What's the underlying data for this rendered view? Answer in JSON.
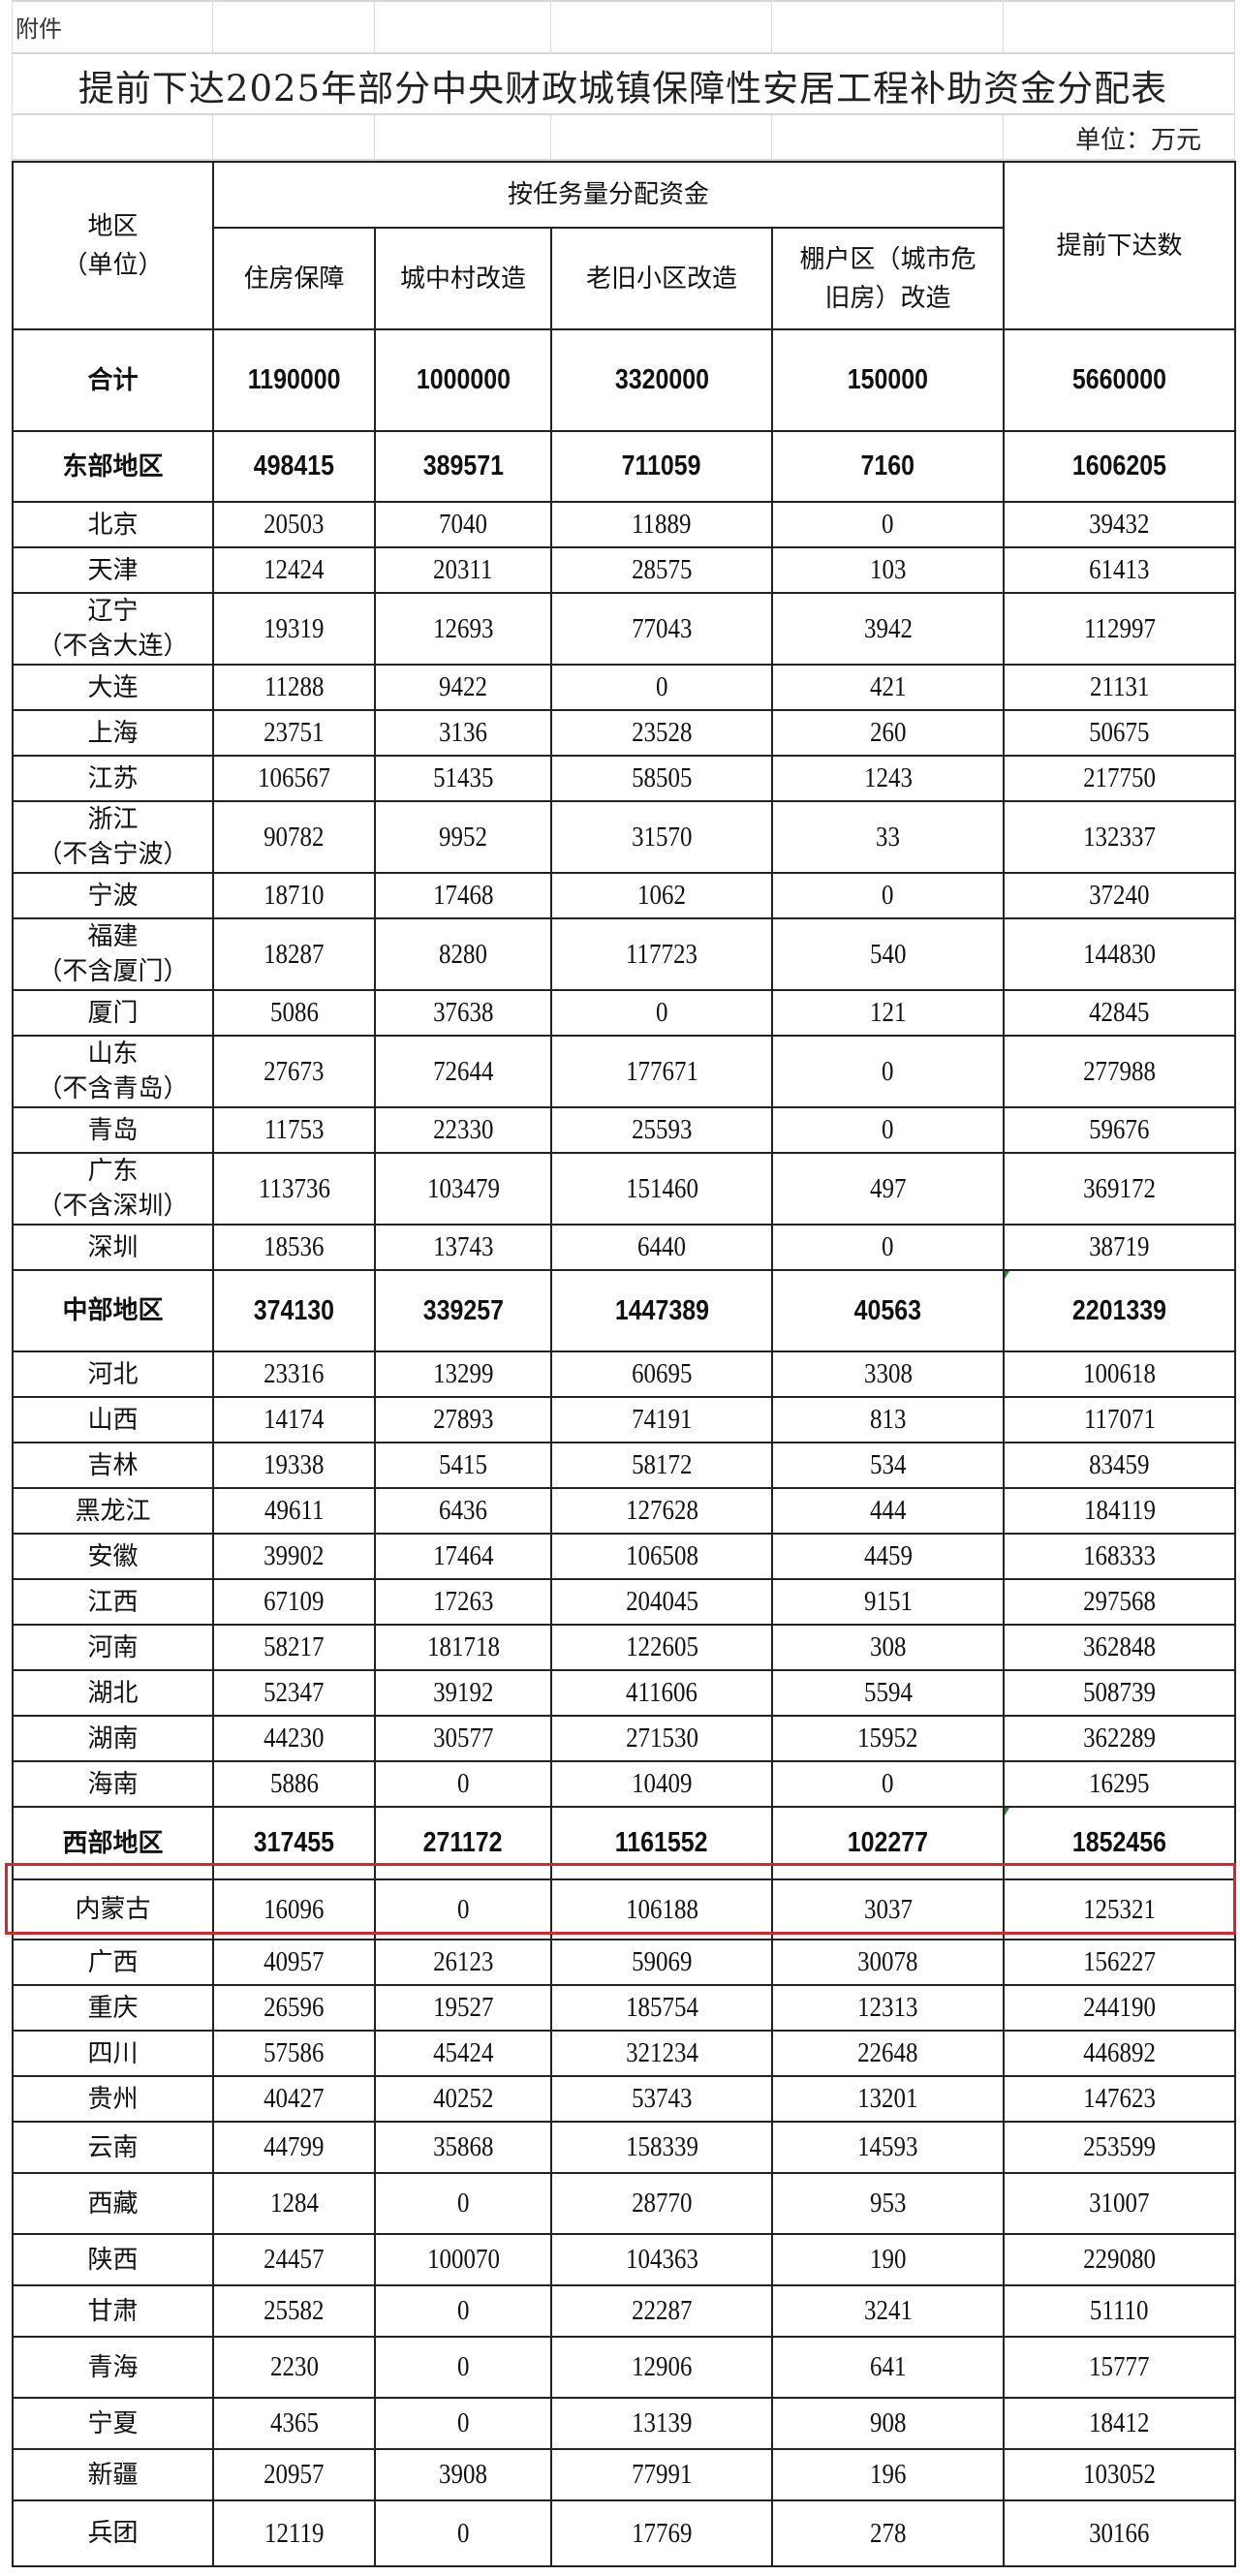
{
  "sheet": {
    "attachment_label": "附件",
    "title": "提前下达2025年部分中央财政城镇保障性安居工程补助资金分配表",
    "unit": "单位：万元"
  },
  "header": {
    "region": "地区\n（单位）",
    "group": "按任务量分配资金",
    "columns": [
      "住房保障",
      "城中村改造",
      "老旧小区改造",
      "棚户区（城市危旧房）改造"
    ],
    "total": "提前下达数"
  },
  "rows": [
    {
      "name": "合计",
      "values": [
        "1190000",
        "1000000",
        "3320000",
        "150000",
        "5660000"
      ],
      "subtotal": true
    },
    {
      "name": "东部地区",
      "values": [
        "498415",
        "389571",
        "711059",
        "7160",
        "1606205"
      ],
      "subtotal": true
    },
    {
      "name": "北京",
      "values": [
        "20503",
        "7040",
        "11889",
        "0",
        "39432"
      ]
    },
    {
      "name": "天津",
      "values": [
        "12424",
        "20311",
        "28575",
        "103",
        "61413"
      ]
    },
    {
      "name": "辽宁\n（不含大连）",
      "values": [
        "19319",
        "12693",
        "77043",
        "3942",
        "112997"
      ]
    },
    {
      "name": "大连",
      "values": [
        "11288",
        "9422",
        "0",
        "421",
        "21131"
      ]
    },
    {
      "name": "上海",
      "values": [
        "23751",
        "3136",
        "23528",
        "260",
        "50675"
      ]
    },
    {
      "name": "江苏",
      "values": [
        "106567",
        "51435",
        "58505",
        "1243",
        "217750"
      ]
    },
    {
      "name": "浙江\n（不含宁波）",
      "values": [
        "90782",
        "9952",
        "31570",
        "33",
        "132337"
      ]
    },
    {
      "name": "宁波",
      "values": [
        "18710",
        "17468",
        "1062",
        "0",
        "37240"
      ]
    },
    {
      "name": "福建\n（不含厦门）",
      "values": [
        "18287",
        "8280",
        "117723",
        "540",
        "144830"
      ]
    },
    {
      "name": "厦门",
      "values": [
        "5086",
        "37638",
        "0",
        "121",
        "42845"
      ]
    },
    {
      "name": "山东\n（不含青岛）",
      "values": [
        "27673",
        "72644",
        "177671",
        "0",
        "277988"
      ]
    },
    {
      "name": "青岛",
      "values": [
        "11753",
        "22330",
        "25593",
        "0",
        "59676"
      ]
    },
    {
      "name": "广东\n（不含深圳）",
      "values": [
        "113736",
        "103479",
        "151460",
        "497",
        "369172"
      ]
    },
    {
      "name": "深圳",
      "values": [
        "18536",
        "13743",
        "6440",
        "0",
        "38719"
      ]
    },
    {
      "name": "中部地区",
      "values": [
        "374130",
        "339257",
        "1447389",
        "40563",
        "2201339"
      ],
      "subtotal": true
    },
    {
      "name": "河北",
      "values": [
        "23316",
        "13299",
        "60695",
        "3308",
        "100618"
      ]
    },
    {
      "name": "山西",
      "values": [
        "14174",
        "27893",
        "74191",
        "813",
        "117071"
      ]
    },
    {
      "name": "吉林",
      "values": [
        "19338",
        "5415",
        "58172",
        "534",
        "83459"
      ]
    },
    {
      "name": "黑龙江",
      "values": [
        "49611",
        "6436",
        "127628",
        "444",
        "184119"
      ]
    },
    {
      "name": "安徽",
      "values": [
        "39902",
        "17464",
        "106508",
        "4459",
        "168333"
      ]
    },
    {
      "name": "江西",
      "values": [
        "67109",
        "17263",
        "204045",
        "9151",
        "297568"
      ]
    },
    {
      "name": "河南",
      "values": [
        "58217",
        "181718",
        "122605",
        "308",
        "362848"
      ]
    },
    {
      "name": "湖北",
      "values": [
        "52347",
        "39192",
        "411606",
        "5594",
        "508739"
      ]
    },
    {
      "name": "湖南",
      "values": [
        "44230",
        "30577",
        "271530",
        "15952",
        "362289"
      ]
    },
    {
      "name": "海南",
      "values": [
        "5886",
        "0",
        "10409",
        "0",
        "16295"
      ]
    },
    {
      "name": "西部地区",
      "values": [
        "317455",
        "271172",
        "1161552",
        "102277",
        "1852456"
      ],
      "subtotal": true
    },
    {
      "name": "内蒙古",
      "values": [
        "16096",
        "0",
        "106188",
        "3037",
        "125321"
      ],
      "highlighted": true
    },
    {
      "name": "广西",
      "values": [
        "40957",
        "26123",
        "59069",
        "30078",
        "156227"
      ]
    },
    {
      "name": "重庆",
      "values": [
        "26596",
        "19527",
        "185754",
        "12313",
        "244190"
      ]
    },
    {
      "name": "四川",
      "values": [
        "57586",
        "45424",
        "321234",
        "22648",
        "446892"
      ]
    },
    {
      "name": "贵州",
      "values": [
        "40427",
        "40252",
        "53743",
        "13201",
        "147623"
      ]
    },
    {
      "name": "云南",
      "values": [
        "44799",
        "35868",
        "158339",
        "14593",
        "253599"
      ]
    },
    {
      "name": "西藏",
      "values": [
        "1284",
        "0",
        "28770",
        "953",
        "31007"
      ]
    },
    {
      "name": "陕西",
      "values": [
        "24457",
        "100070",
        "104363",
        "190",
        "229080"
      ]
    },
    {
      "name": "甘肃",
      "values": [
        "25582",
        "0",
        "22287",
        "3241",
        "51110"
      ]
    },
    {
      "name": "青海",
      "values": [
        "2230",
        "0",
        "12906",
        "641",
        "15777"
      ]
    },
    {
      "name": "宁夏",
      "values": [
        "4365",
        "0",
        "13139",
        "908",
        "18412"
      ]
    },
    {
      "name": "新疆",
      "values": [
        "20957",
        "3908",
        "77991",
        "196",
        "103052"
      ]
    },
    {
      "name": "兵团",
      "values": [
        "12119",
        "0",
        "17769",
        "278",
        "30166"
      ]
    }
  ],
  "colors": {
    "highlight": "#d8262c",
    "comment_marker": "#1a8a2a"
  }
}
